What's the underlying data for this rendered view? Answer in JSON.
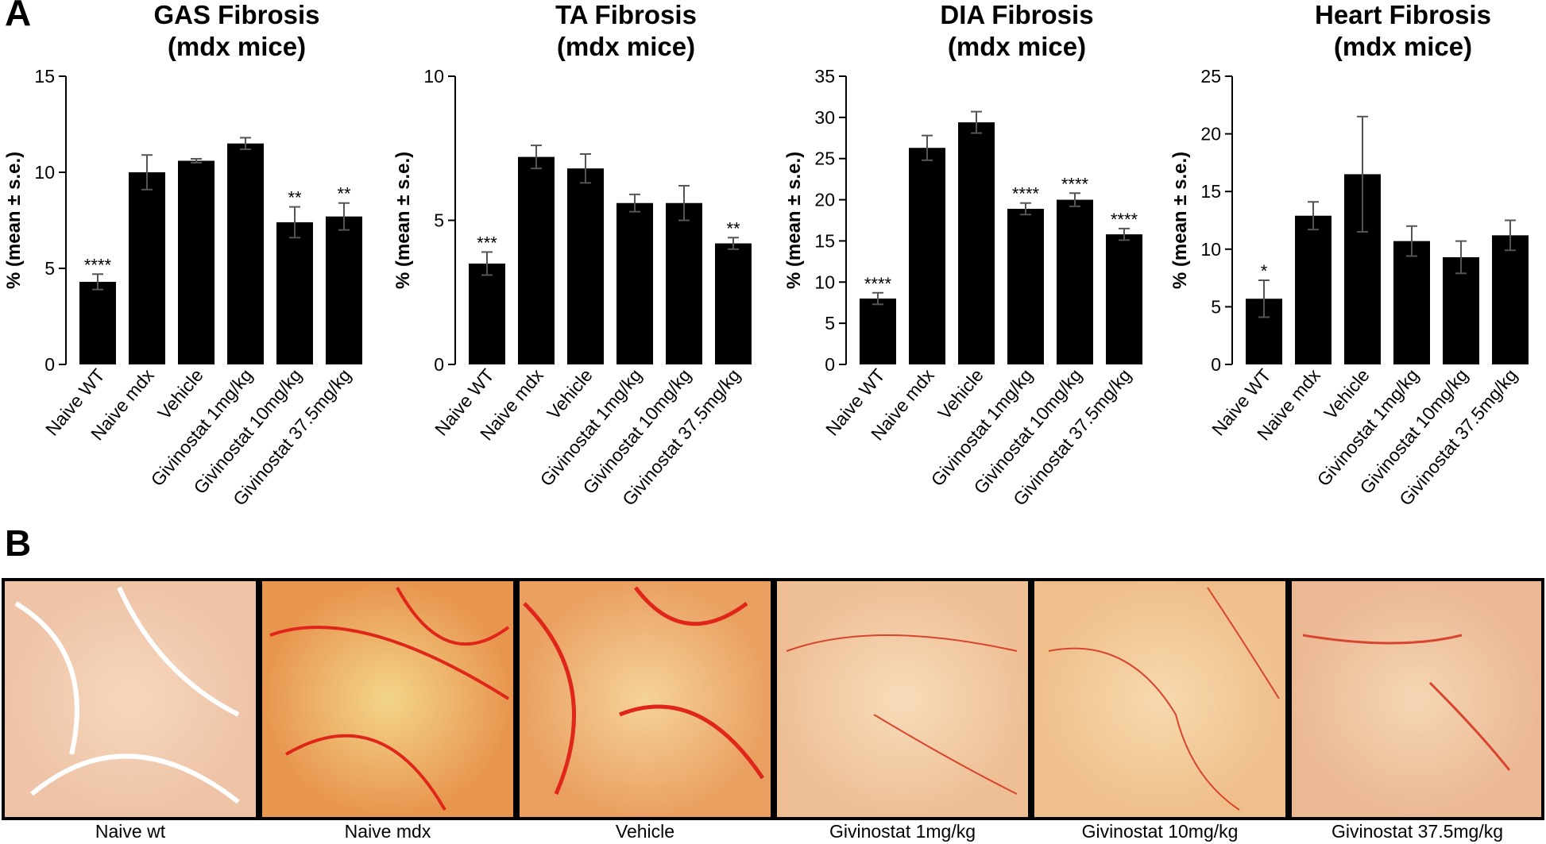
{
  "panel_labels": [
    "A",
    "B"
  ],
  "chart_data": [
    {
      "type": "bar",
      "title": "GAS Fibrosis",
      "subtitle": "(mdx mice)",
      "ylabel": "% (mean ± s.e.)",
      "categories": [
        "Naive WT",
        "Naive mdx",
        "Vehicle",
        "Givinostat 1mg/kg",
        "Givinostat 10mg/kg",
        "Givinostat 37.5mg/kg"
      ],
      "values": [
        4.3,
        10.0,
        10.6,
        11.5,
        7.4,
        7.7
      ],
      "errors": [
        0.4,
        0.9,
        0.1,
        0.3,
        0.8,
        0.7
      ],
      "annotations": [
        "****",
        null,
        null,
        null,
        "**",
        "**"
      ],
      "ylim": [
        0,
        15
      ],
      "yticks": [
        0,
        5,
        10,
        15
      ],
      "color": "#000000"
    },
    {
      "type": "bar",
      "title": "TA Fibrosis",
      "subtitle": "(mdx mice)",
      "ylabel": "% (mean ± s.e.)",
      "categories": [
        "Naive WT",
        "Naive mdx",
        "Vehicle",
        "Givinostat 1mg/kg",
        "Givinostat 10mg/kg",
        "Givinostat 37.5mg/kg"
      ],
      "values": [
        3.5,
        7.2,
        6.8,
        5.6,
        5.6,
        4.2
      ],
      "errors": [
        0.4,
        0.4,
        0.5,
        0.3,
        0.6,
        0.2
      ],
      "annotations": [
        "***",
        null,
        null,
        null,
        null,
        "**"
      ],
      "ylim": [
        0,
        10
      ],
      "yticks": [
        0,
        5,
        10
      ],
      "color": "#000000"
    },
    {
      "type": "bar",
      "title": "DIA Fibrosis",
      "subtitle": "(mdx mice)",
      "ylabel": "% (mean ± s.e.)",
      "categories": [
        "Naive WT",
        "Naive mdx",
        "Vehicle",
        "Givinostat 1mg/kg",
        "Givinostat 10mg/kg",
        "Givinostat 37.5mg/kg"
      ],
      "values": [
        8.0,
        26.3,
        29.4,
        18.9,
        20.0,
        15.8
      ],
      "errors": [
        0.7,
        1.5,
        1.3,
        0.7,
        0.8,
        0.7
      ],
      "annotations": [
        "****",
        null,
        null,
        "****",
        "****",
        "****"
      ],
      "ylim": [
        0,
        35
      ],
      "yticks": [
        0,
        5,
        10,
        15,
        20,
        25,
        30,
        35
      ],
      "color": "#000000"
    },
    {
      "type": "bar",
      "title": "Heart Fibrosis",
      "subtitle": "(mdx mice)",
      "ylabel": "% (mean ± s.e.)",
      "categories": [
        "Naive WT",
        "Naive mdx",
        "Vehicle",
        "Givinostat 1mg/kg",
        "Givinostat 10mg/kg",
        "Givinostat 37.5mg/kg"
      ],
      "values": [
        5.7,
        12.9,
        16.5,
        10.7,
        9.3,
        11.2
      ],
      "errors": [
        1.6,
        1.2,
        5.0,
        1.3,
        1.4,
        1.3
      ],
      "annotations": [
        "*",
        null,
        null,
        null,
        null,
        null
      ],
      "ylim": [
        0,
        25
      ],
      "yticks": [
        0,
        5,
        10,
        15,
        20,
        25
      ],
      "color": "#000000"
    }
  ],
  "panel_b": {
    "captions": [
      "Naive wt",
      "Naive mdx",
      "Vehicle",
      "Givinostat 1mg/kg",
      "Givinostat 10mg/kg",
      "Givinostat 37.5mg/kg"
    ]
  }
}
